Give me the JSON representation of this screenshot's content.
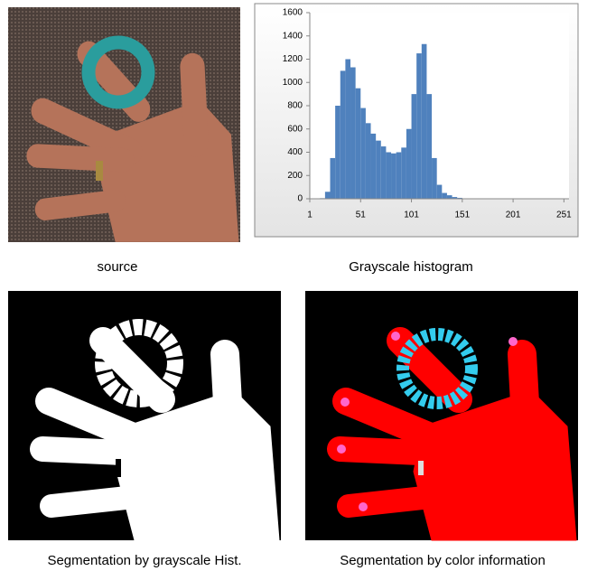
{
  "chart_data": {
    "type": "histogram",
    "bins": [
      1,
      6,
      11,
      16,
      21,
      26,
      31,
      36,
      41,
      46,
      51,
      56,
      61,
      66,
      71,
      76,
      81,
      86,
      91,
      96,
      101,
      106,
      111,
      116,
      121,
      126,
      131,
      136,
      141,
      146,
      151,
      156,
      161,
      166,
      171,
      176,
      181,
      186,
      191,
      196,
      201,
      206,
      211,
      216,
      221,
      226,
      231,
      236,
      241,
      246,
      251,
      256
    ],
    "values": [
      0,
      0,
      5,
      60,
      350,
      800,
      1100,
      1200,
      1130,
      950,
      780,
      650,
      560,
      500,
      450,
      400,
      390,
      400,
      440,
      600,
      900,
      1250,
      1330,
      900,
      350,
      120,
      50,
      30,
      15,
      8,
      3,
      2,
      0,
      0,
      0,
      0,
      0,
      0,
      0,
      0,
      0,
      0,
      0,
      0,
      0,
      0,
      0,
      0,
      0,
      0,
      0
    ],
    "color": "#4f81bd",
    "xlim": [
      1,
      256
    ],
    "xticks": [
      1,
      51,
      101,
      151,
      201,
      251
    ],
    "ylim": [
      0,
      1600
    ],
    "yticks": [
      0,
      200,
      400,
      600,
      800,
      1000,
      1200,
      1400,
      1600
    ]
  },
  "captions": [
    "source",
    "Grayscale histogram",
    "Segmentation by grayscale Hist.",
    "Segmentation by color information"
  ]
}
